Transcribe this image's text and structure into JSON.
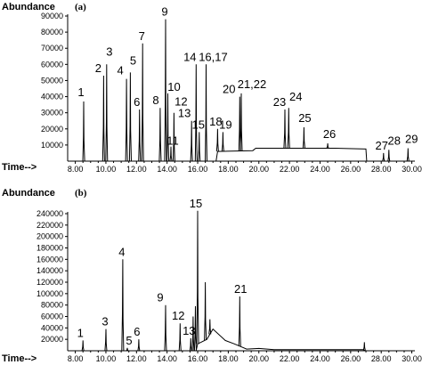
{
  "chart_data": [
    {
      "type": "line",
      "panel_label": "(a)",
      "ylabel": "Abundance",
      "xlabel": "Time-->",
      "xlim": [
        7.5,
        30.2
      ],
      "ylim": [
        0,
        90000
      ],
      "grid": false,
      "x_ticks": [
        "8.00",
        "10.00",
        "12.00",
        "14.00",
        "16.00",
        "18.00",
        "20.00",
        "22.00",
        "24.00",
        "26.00",
        "28.00",
        "30.00"
      ],
      "y_ticks": [
        "10000",
        "20000",
        "30000",
        "40000",
        "50000",
        "60000",
        "70000",
        "80000",
        "90000"
      ],
      "peaks": [
        {
          "label": "1",
          "x": 8.55,
          "y": 37000
        },
        {
          "label": "2",
          "x": 9.85,
          "y": 53000
        },
        {
          "label": "3",
          "x": 10.05,
          "y": 60000
        },
        {
          "label": "4",
          "x": 11.35,
          "y": 51000
        },
        {
          "label": "5",
          "x": 11.6,
          "y": 55000
        },
        {
          "label": "6",
          "x": 12.2,
          "y": 32000
        },
        {
          "label": "7",
          "x": 12.4,
          "y": 73000
        },
        {
          "label": "8",
          "x": 13.55,
          "y": 33000
        },
        {
          "label": "9",
          "x": 13.9,
          "y": 88000
        },
        {
          "label": "10",
          "x": 14.05,
          "y": 42000
        },
        {
          "label": "11",
          "x": 14.25,
          "y": 9000
        },
        {
          "label": "12",
          "x": 14.45,
          "y": 30000
        },
        {
          "label": "13",
          "x": 15.6,
          "y": 25000
        },
        {
          "label": "14",
          "x": 15.9,
          "y": 60000
        },
        {
          "label": "15",
          "x": 16.1,
          "y": 18000
        },
        {
          "label": "16,17",
          "x": 16.55,
          "y": 60000
        },
        {
          "label": "18",
          "x": 17.3,
          "y": 20000
        },
        {
          "label": "19",
          "x": 17.65,
          "y": 18000
        },
        {
          "label": "20",
          "x": 18.75,
          "y": 40000
        },
        {
          "label": "21,22",
          "x": 18.85,
          "y": 42000
        },
        {
          "label": "23",
          "x": 21.7,
          "y": 32000
        },
        {
          "label": "24",
          "x": 21.95,
          "y": 33000
        },
        {
          "label": "25",
          "x": 22.95,
          "y": 21000
        },
        {
          "label": "26",
          "x": 24.5,
          "y": 11000
        },
        {
          "label": "27",
          "x": 28.15,
          "y": 5000
        },
        {
          "label": "28",
          "x": 28.5,
          "y": 7000
        },
        {
          "label": "29",
          "x": 29.75,
          "y": 8000
        }
      ],
      "baseline": [
        [
          7.5,
          0
        ],
        [
          17.2,
          0
        ],
        [
          17.3,
          6000
        ],
        [
          19.6,
          6500
        ],
        [
          19.8,
          8000
        ],
        [
          25.0,
          8000
        ],
        [
          27.0,
          7500
        ],
        [
          27.05,
          0
        ],
        [
          30.2,
          0
        ]
      ]
    },
    {
      "type": "line",
      "panel_label": "(b)",
      "ylabel": "Abundance",
      "xlabel": "Time-->",
      "xlim": [
        7.5,
        30.2
      ],
      "ylim": [
        0,
        240000
      ],
      "grid": false,
      "x_ticks": [
        "8.00",
        "10.00",
        "12.00",
        "14.00",
        "16.00",
        "18.00",
        "20.00",
        "22.00",
        "24.00",
        "26.00",
        "28.00",
        "30.00"
      ],
      "y_ticks": [
        "20000",
        "40000",
        "60000",
        "80000",
        "100000",
        "120000",
        "140000",
        "160000",
        "180000",
        "200000",
        "220000",
        "240000"
      ],
      "peaks": [
        {
          "label": "1",
          "x": 8.5,
          "y": 18000
        },
        {
          "label": "3",
          "x": 10.0,
          "y": 38000
        },
        {
          "label": "4",
          "x": 11.1,
          "y": 160000
        },
        {
          "label": "5",
          "x": 11.4,
          "y": 5000
        },
        {
          "label": "6",
          "x": 12.15,
          "y": 20000
        },
        {
          "label": "9",
          "x": 13.9,
          "y": 80000
        },
        {
          "label": "12",
          "x": 14.85,
          "y": 48000
        },
        {
          "label": "13",
          "x": 15.55,
          "y": 22000
        },
        {
          "label": "15",
          "x": 16.0,
          "y": 245000
        },
        {
          "label": "21",
          "x": 18.75,
          "y": 95000
        }
      ],
      "extra_peaks": [
        {
          "x": 15.7,
          "y": 60000
        },
        {
          "x": 15.85,
          "y": 78000
        },
        {
          "x": 16.5,
          "y": 120000
        },
        {
          "x": 16.8,
          "y": 55000
        },
        {
          "x": 26.9,
          "y": 15000
        }
      ],
      "baseline": [
        [
          7.5,
          0
        ],
        [
          15.9,
          0
        ],
        [
          16.0,
          12000
        ],
        [
          16.6,
          20000
        ],
        [
          17.0,
          38000
        ],
        [
          17.8,
          18000
        ],
        [
          18.4,
          12000
        ],
        [
          19.2,
          3000
        ],
        [
          20.0,
          4000
        ],
        [
          21.0,
          2000
        ],
        [
          26.8,
          2000
        ],
        [
          27.0,
          0
        ],
        [
          30.2,
          0
        ]
      ]
    }
  ]
}
